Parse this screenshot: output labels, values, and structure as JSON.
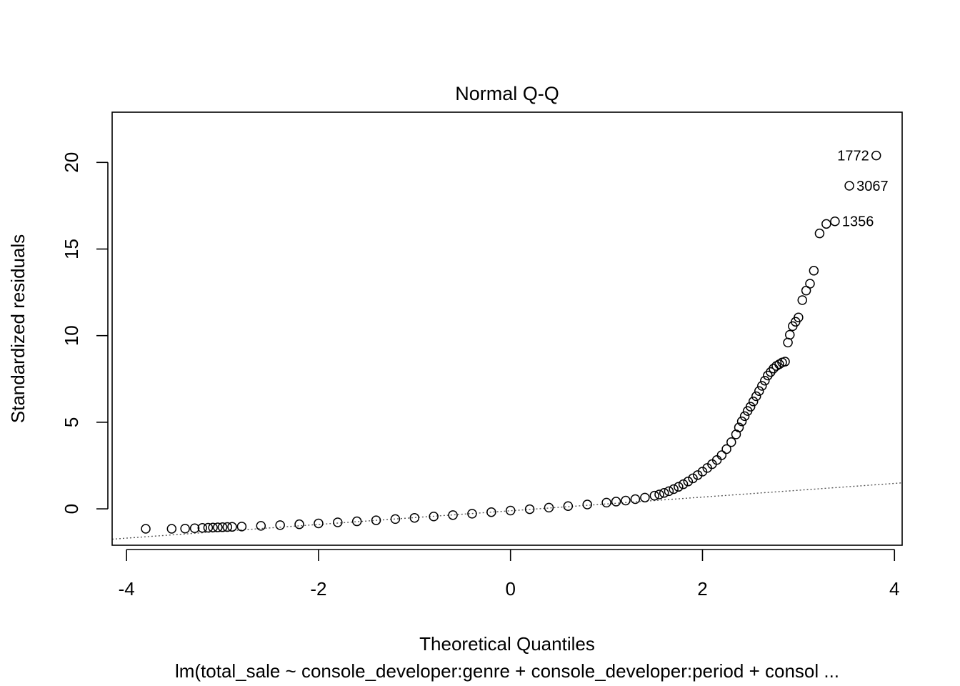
{
  "chart_data": {
    "type": "scatter",
    "title": "Normal Q-Q",
    "xlabel": "Theoretical Quantiles",
    "ylabel": "Standardized residuals",
    "subtitle": "lm(total_sale ~ console_developer:genre + console_developer:period + consol ...",
    "xlim": [
      -4.15,
      4.08
    ],
    "ylim": [
      -2.1,
      22.9
    ],
    "xticks": [
      -4,
      -2,
      0,
      2,
      4
    ],
    "yticks": [
      0,
      5,
      10,
      15,
      20
    ],
    "grid": false,
    "reference_line": {
      "style": "dotted",
      "color": "#555555",
      "points": [
        [
          -4.15,
          -1.75
        ],
        [
          4.08,
          1.5
        ]
      ]
    },
    "series": [
      {
        "marker": "open-circle",
        "x": [
          -3.8,
          -3.53,
          -3.39,
          -3.29,
          -3.21,
          -3.15,
          -3.1,
          -3.05,
          -3.0,
          -2.95,
          -2.9,
          -2.8,
          -2.6,
          -2.4,
          -2.2,
          -2.0,
          -1.8,
          -1.6,
          -1.4,
          -1.2,
          -1.0,
          -0.8,
          -0.6,
          -0.4,
          -0.2,
          0.0,
          0.2,
          0.4,
          0.6,
          0.8,
          1.0,
          1.1,
          1.2,
          1.3,
          1.4,
          1.5,
          1.55,
          1.6,
          1.65,
          1.7,
          1.75,
          1.8,
          1.85,
          1.9,
          1.95,
          2.0,
          2.05,
          2.1,
          2.15,
          2.2,
          2.25,
          2.3,
          2.35,
          2.38,
          2.41,
          2.44,
          2.47,
          2.5,
          2.53,
          2.56,
          2.59,
          2.62,
          2.65,
          2.68,
          2.71,
          2.74,
          2.77,
          2.8,
          2.83,
          2.86,
          2.89,
          2.91,
          2.94,
          2.97,
          3.0,
          3.04,
          3.08,
          3.12,
          3.16,
          3.22,
          3.29,
          3.38,
          3.53,
          3.81
        ],
        "y": [
          -1.15,
          -1.15,
          -1.14,
          -1.12,
          -1.1,
          -1.09,
          -1.08,
          -1.07,
          -1.06,
          -1.05,
          -1.04,
          -1.02,
          -0.98,
          -0.94,
          -0.89,
          -0.84,
          -0.78,
          -0.72,
          -0.66,
          -0.59,
          -0.52,
          -0.44,
          -0.36,
          -0.28,
          -0.19,
          -0.1,
          -0.02,
          0.07,
          0.16,
          0.25,
          0.36,
          0.42,
          0.48,
          0.56,
          0.65,
          0.76,
          0.83,
          0.92,
          1.02,
          1.14,
          1.27,
          1.42,
          1.58,
          1.76,
          1.95,
          2.15,
          2.36,
          2.58,
          2.82,
          3.1,
          3.45,
          3.85,
          4.3,
          4.7,
          5.05,
          5.35,
          5.65,
          5.9,
          6.2,
          6.5,
          6.8,
          7.1,
          7.4,
          7.7,
          7.9,
          8.1,
          8.25,
          8.35,
          8.45,
          8.5,
          9.6,
          10.05,
          10.55,
          10.8,
          11.05,
          12.05,
          12.6,
          13.0,
          13.75,
          15.9,
          16.45,
          16.6,
          18.65,
          20.4
        ]
      }
    ],
    "annotations": [
      {
        "text": "1772",
        "x": 3.81,
        "y": 20.4,
        "pos": "left"
      },
      {
        "text": "3067",
        "x": 3.53,
        "y": 18.65,
        "pos": "right"
      },
      {
        "text": "1356",
        "x": 3.38,
        "y": 16.6,
        "pos": "right"
      }
    ]
  }
}
